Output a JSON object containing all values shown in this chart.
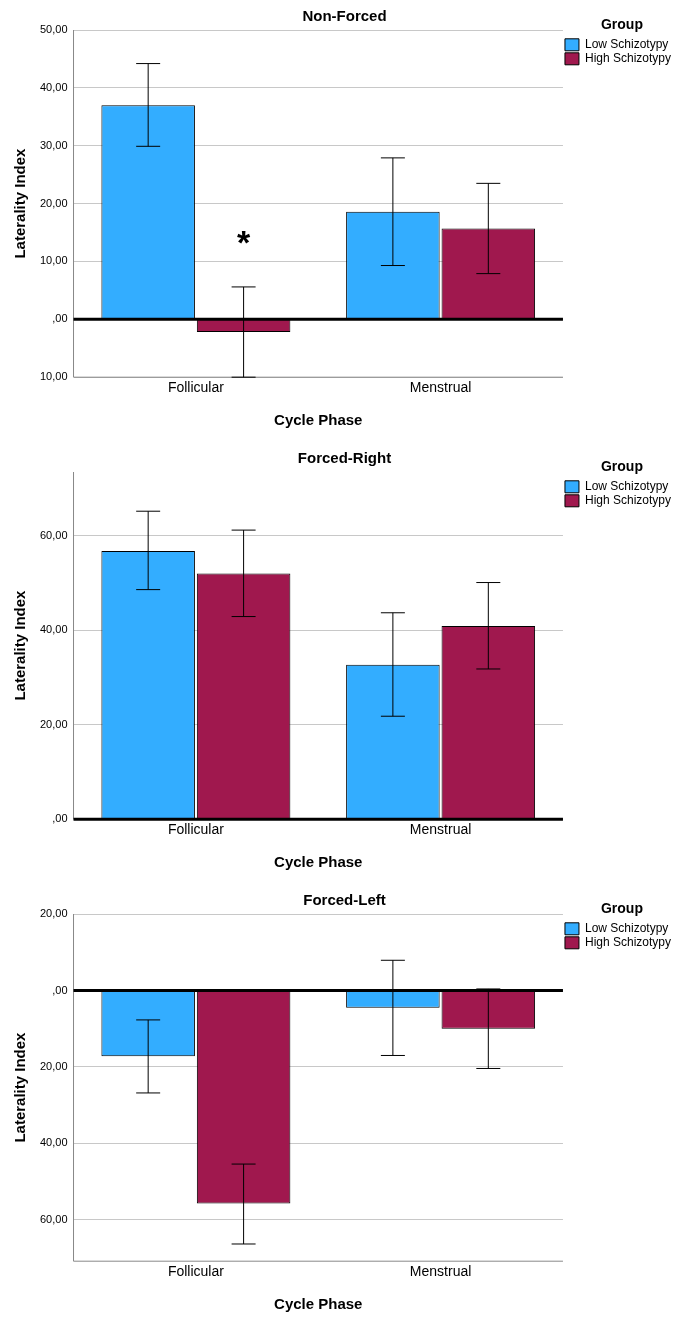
{
  "chart_data": [
    {
      "type": "bar",
      "title": "Non-Forced",
      "xlabel": "Cycle Phase",
      "ylabel": "Laterality Index",
      "legend_title": "Group",
      "legend": "top right",
      "grid": "y",
      "categories": [
        "Follicular",
        "Menstrual"
      ],
      "series": [
        {
          "name": "Low Schizotypy",
          "color": "#33adff",
          "values": [
            37.0,
            18.6
          ],
          "errors": [
            [
              29.9,
              44.2
            ],
            [
              9.3,
              27.9
            ]
          ]
        },
        {
          "name": "High Schizotypy",
          "color": "#a0184e",
          "values": [
            -2.2,
            15.7
          ],
          "errors": [
            [
              -10,
              5.6
            ],
            [
              7.9,
              23.5
            ]
          ]
        }
      ],
      "ylim": [
        -10,
        50
      ],
      "yticks": [
        {
          "value": -10,
          "label": "10,00"
        },
        {
          "value": 0,
          "label": ",00"
        },
        {
          "value": 10,
          "label": "10,00"
        },
        {
          "value": 20,
          "label": "20,00"
        },
        {
          "value": 30,
          "label": "30,00"
        },
        {
          "value": 40,
          "label": "40,00"
        },
        {
          "value": 50,
          "label": "50,00"
        }
      ],
      "ref_lines": [
        {
          "axis": "y",
          "value": 0,
          "color": "#000000"
        }
      ],
      "annotations": [
        {
          "text": "*",
          "x": "Follicular",
          "y": 14
        }
      ]
    },
    {
      "type": "bar",
      "title": "Forced-Right",
      "xlabel": "Cycle Phase",
      "ylabel": "Laterality Index",
      "legend_title": "Group",
      "legend": "top right",
      "grid": "y",
      "categories": [
        "Follicular",
        "Menstrual"
      ],
      "series": [
        {
          "name": "Low Schizotypy",
          "color": "#33adff",
          "values": [
            56.8,
            32.7
          ],
          "errors": [
            [
              48.6,
              65.2
            ],
            [
              21.8,
              43.7
            ]
          ]
        },
        {
          "name": "High Schizotypy",
          "color": "#a0184e",
          "values": [
            52.0,
            40.9
          ],
          "errors": [
            [
              42.9,
              61.2
            ],
            [
              31.8,
              50.1
            ]
          ]
        }
      ],
      "ylim": [
        0,
        73.5
      ],
      "yticks": [
        {
          "value": 0,
          "label": ",00"
        },
        {
          "value": 20,
          "label": "20,00"
        },
        {
          "value": 40,
          "label": "40,00"
        },
        {
          "value": 60,
          "label": "60,00"
        }
      ],
      "ref_lines": [
        {
          "axis": "y",
          "value": 0,
          "color": "#000000"
        }
      ]
    },
    {
      "type": "bar",
      "title": "Forced-Left",
      "xlabel": "Cycle Phase",
      "ylabel": "Laterality Index",
      "legend_title": "Group",
      "legend": "top right",
      "grid": "y",
      "categories": [
        "Follicular",
        "Menstrual"
      ],
      "series": [
        {
          "name": "Low Schizotypy",
          "color": "#33adff",
          "values": [
            -17.2,
            -4.5
          ],
          "errors": [
            [
              -26.8,
              -7.7
            ],
            [
              -17.0,
              7.9
            ]
          ]
        },
        {
          "name": "High Schizotypy",
          "color": "#a0184e",
          "values": [
            -55.7,
            -10.0
          ],
          "errors": [
            [
              -66.3,
              -45.4
            ],
            [
              -20.4,
              0.4
            ]
          ]
        }
      ],
      "ylim": [
        -70.8,
        20
      ],
      "yticks": [
        {
          "value": -60,
          "label": "60,00"
        },
        {
          "value": -40,
          "label": "40,00"
        },
        {
          "value": -20,
          "label": "20,00"
        },
        {
          "value": 0,
          "label": ",00"
        },
        {
          "value": 20,
          "label": "20,00"
        }
      ],
      "ref_lines": [
        {
          "axis": "y",
          "value": 0,
          "color": "#000000"
        }
      ]
    }
  ]
}
